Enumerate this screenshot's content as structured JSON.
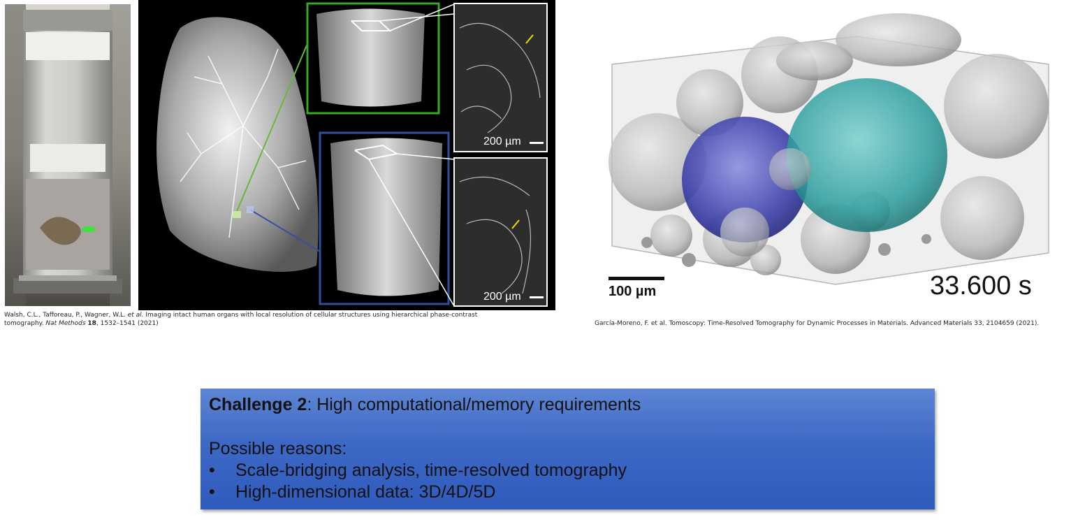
{
  "left_figure": {
    "scale_bar_top": "200 µm",
    "scale_bar_bottom": "200 µm",
    "caption_line1_pre": "Walsh, C.L., Tafforeau, P., Wagner, W.L. ",
    "caption_line1_etal": "et al.",
    "caption_line1_post": " Imaging intact human organs with local resolution of cellular structures using hierarchical phase-contrast",
    "caption_line2_pre": "tomography. ",
    "caption_line2_journal": "Nat Methods",
    "caption_line2_vol": "18",
    "caption_line2_post": ", 1532–1541 (2021)"
  },
  "right_figure": {
    "scale_bar_label": "100 µm",
    "timestamp": "33.600 s",
    "caption": "García-Moreno, F. et al. Tomoscopy: Time-Resolved Tomography for Dynamic Processes in Materials. Advanced Materials 33, 2104659 (2021)."
  },
  "challenge_box": {
    "title_bold": "Challenge 2",
    "title_rest": ": High computational/memory requirements",
    "reasons_heading": "Possible reasons:",
    "bullets": [
      "Scale-bridging analysis, time-resolved tomography",
      "High-dimensional data: 3D/4D/5D"
    ],
    "bullet_symbol": "•"
  },
  "colors": {
    "green_frame": "#3aa52a",
    "blue_frame": "#2f4f9a",
    "blue_bubble": "#3b3fa8",
    "teal_bubble": "#2a9c9c",
    "box_top": "#5f86d4",
    "box_bottom": "#2f5bbd"
  }
}
